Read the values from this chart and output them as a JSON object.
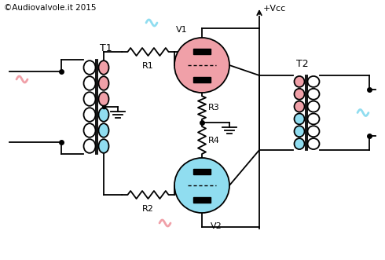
{
  "title": "©Audiovalvole.it 2015",
  "bg_color": "#ffffff",
  "line_color": "#000000",
  "valve1_color": "#f0a0a8",
  "valve2_color": "#90ddf0",
  "coil_pink": "#f0a0a8",
  "coil_blue": "#90ddf0",
  "vcc_label": "+Vcc",
  "v1_label": "V1",
  "v2_label": "V2",
  "r1_label": "R1",
  "r2_label": "R2",
  "r3_label": "R3",
  "r4_label": "R4",
  "t1_label": "T1",
  "t2_label": "T2"
}
